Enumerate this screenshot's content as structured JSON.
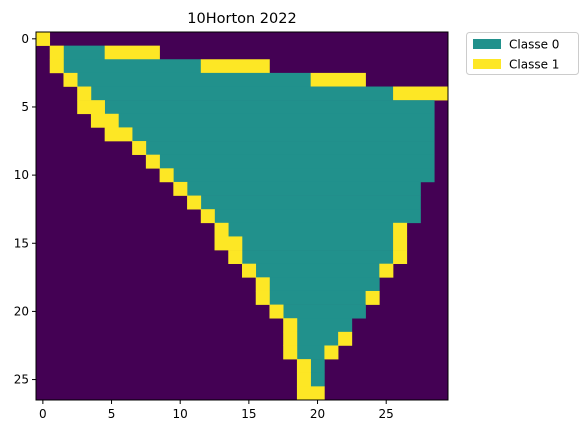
{
  "chart_data": {
    "type": "heatmap",
    "title": "10Horton 2022",
    "xlabel": "",
    "ylabel": "",
    "n_rows": 27,
    "n_cols": 30,
    "x_ticks": [
      0,
      5,
      10,
      15,
      20,
      25
    ],
    "y_ticks": [
      0,
      5,
      10,
      15,
      20,
      25
    ],
    "grid": false,
    "legend_position": "outside top-right",
    "colors": {
      "background": "#440154",
      "Classe 0": "#21918c",
      "Classe 1": "#fde725"
    },
    "legend": [
      {
        "label": "Classe 0",
        "color": "#21918c"
      },
      {
        "label": "Classe 1",
        "color": "#fde725"
      }
    ],
    "rows": [
      {
        "row": 0,
        "yellow": [
          [
            0,
            0
          ]
        ],
        "teal": []
      },
      {
        "row": 1,
        "yellow": [
          [
            1,
            1
          ],
          [
            5,
            8
          ]
        ],
        "teal": [
          [
            2,
            4
          ]
        ]
      },
      {
        "row": 2,
        "yellow": [
          [
            1,
            1
          ],
          [
            12,
            16
          ]
        ],
        "teal": [
          [
            2,
            11
          ]
        ]
      },
      {
        "row": 3,
        "yellow": [
          [
            2,
            2
          ],
          [
            20,
            23
          ]
        ],
        "teal": [
          [
            3,
            19
          ]
        ]
      },
      {
        "row": 4,
        "yellow": [
          [
            3,
            3
          ],
          [
            26,
            29
          ]
        ],
        "teal": [
          [
            4,
            25
          ]
        ]
      },
      {
        "row": 5,
        "yellow": [
          [
            3,
            4
          ]
        ],
        "teal": [
          [
            5,
            28
          ]
        ]
      },
      {
        "row": 6,
        "yellow": [
          [
            4,
            5
          ]
        ],
        "teal": [
          [
            6,
            28
          ]
        ]
      },
      {
        "row": 7,
        "yellow": [
          [
            5,
            6
          ]
        ],
        "teal": [
          [
            7,
            28
          ]
        ]
      },
      {
        "row": 8,
        "yellow": [
          [
            7,
            7
          ]
        ],
        "teal": [
          [
            8,
            28
          ]
        ]
      },
      {
        "row": 9,
        "yellow": [
          [
            8,
            8
          ]
        ],
        "teal": [
          [
            9,
            28
          ]
        ]
      },
      {
        "row": 10,
        "yellow": [
          [
            9,
            9
          ]
        ],
        "teal": [
          [
            10,
            28
          ]
        ]
      },
      {
        "row": 11,
        "yellow": [
          [
            10,
            10
          ]
        ],
        "teal": [
          [
            11,
            27
          ]
        ]
      },
      {
        "row": 12,
        "yellow": [
          [
            11,
            11
          ]
        ],
        "teal": [
          [
            12,
            27
          ]
        ]
      },
      {
        "row": 13,
        "yellow": [
          [
            12,
            12
          ]
        ],
        "teal": [
          [
            13,
            27
          ]
        ]
      },
      {
        "row": 14,
        "yellow": [
          [
            13,
            13
          ],
          [
            26,
            26
          ]
        ],
        "teal": [
          [
            14,
            25
          ]
        ]
      },
      {
        "row": 15,
        "yellow": [
          [
            13,
            14
          ],
          [
            26,
            26
          ]
        ],
        "teal": [
          [
            15,
            25
          ]
        ]
      },
      {
        "row": 16,
        "yellow": [
          [
            14,
            14
          ],
          [
            26,
            26
          ]
        ],
        "teal": [
          [
            15,
            25
          ]
        ]
      },
      {
        "row": 17,
        "yellow": [
          [
            15,
            15
          ],
          [
            25,
            25
          ]
        ],
        "teal": [
          [
            16,
            24
          ]
        ]
      },
      {
        "row": 18,
        "yellow": [
          [
            16,
            16
          ]
        ],
        "teal": [
          [
            17,
            24
          ]
        ]
      },
      {
        "row": 19,
        "yellow": [
          [
            16,
            16
          ],
          [
            24,
            24
          ]
        ],
        "teal": [
          [
            17,
            23
          ]
        ]
      },
      {
        "row": 20,
        "yellow": [
          [
            17,
            17
          ]
        ],
        "teal": [
          [
            18,
            23
          ]
        ]
      },
      {
        "row": 21,
        "yellow": [
          [
            18,
            18
          ]
        ],
        "teal": [
          [
            19,
            22
          ]
        ]
      },
      {
        "row": 22,
        "yellow": [
          [
            18,
            18
          ],
          [
            22,
            22
          ]
        ],
        "teal": [
          [
            19,
            21
          ]
        ]
      },
      {
        "row": 23,
        "yellow": [
          [
            18,
            18
          ],
          [
            21,
            21
          ]
        ],
        "teal": [
          [
            19,
            20
          ]
        ]
      },
      {
        "row": 24,
        "yellow": [
          [
            19,
            19
          ]
        ],
        "teal": [
          [
            20,
            20
          ]
        ]
      },
      {
        "row": 25,
        "yellow": [
          [
            19,
            19
          ]
        ],
        "teal": [
          [
            20,
            20
          ]
        ]
      },
      {
        "row": 26,
        "yellow": [
          [
            19,
            20
          ]
        ],
        "teal": []
      }
    ]
  }
}
